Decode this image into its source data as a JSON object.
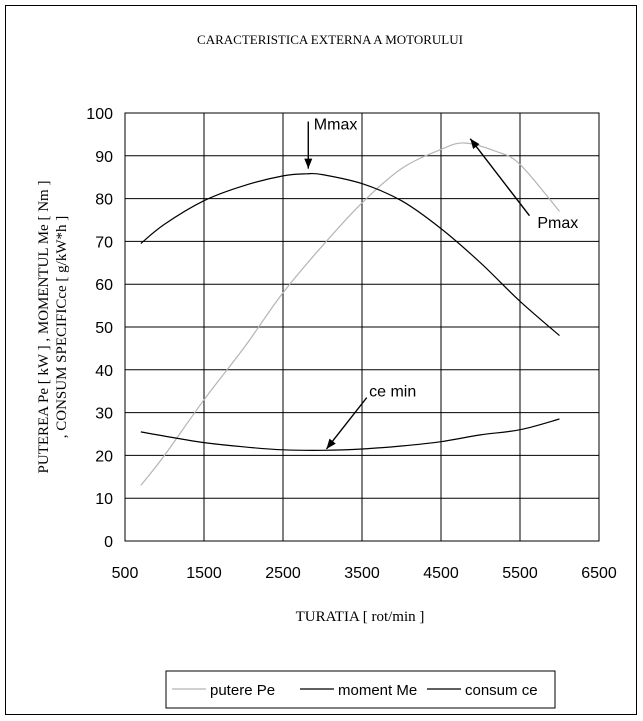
{
  "chart_data": {
    "type": "line",
    "title": "CARACTERISTICA EXTERNA A MOTORULUI",
    "xlabel": "TURATIA [ rot/min ]",
    "ylabel_lines": [
      "PUTEREA Pe [ kW ] , MOMENTUL Me [ Nm ]",
      ", CONSUM SPECIFICce [ g/kW*h ]"
    ],
    "xlim": [
      500,
      6500
    ],
    "ylim": [
      0,
      100
    ],
    "x_ticks": [
      "500",
      "1500",
      "2500",
      "3500",
      "4500",
      "5500",
      "6500"
    ],
    "y_ticks": [
      "0",
      "10",
      "20",
      "30",
      "40",
      "50",
      "60",
      "70",
      "80",
      "90",
      "100"
    ],
    "grid": true,
    "legend_position": "bottom",
    "series": [
      {
        "name": "putere Pe",
        "color": "#b4b4b4",
        "points": [
          [
            700,
            13
          ],
          [
            1000,
            20
          ],
          [
            1500,
            33
          ],
          [
            2000,
            45
          ],
          [
            2500,
            58
          ],
          [
            3000,
            69
          ],
          [
            3500,
            79
          ],
          [
            4000,
            87
          ],
          [
            4500,
            91.5
          ],
          [
            4800,
            93
          ],
          [
            5200,
            91
          ],
          [
            5500,
            88
          ],
          [
            6000,
            77
          ]
        ]
      },
      {
        "name": "moment Me",
        "color": "#000000",
        "points": [
          [
            700,
            69.5
          ],
          [
            1000,
            74
          ],
          [
            1500,
            79.5
          ],
          [
            2000,
            83
          ],
          [
            2500,
            85.3
          ],
          [
            2800,
            85.8
          ],
          [
            3000,
            85.6
          ],
          [
            3500,
            83.5
          ],
          [
            4000,
            79.5
          ],
          [
            4500,
            73
          ],
          [
            5000,
            65
          ],
          [
            5500,
            56
          ],
          [
            6000,
            48
          ]
        ]
      },
      {
        "name": "consum ce",
        "color": "#000000",
        "points": [
          [
            700,
            25.5
          ],
          [
            1000,
            24.5
          ],
          [
            1500,
            23
          ],
          [
            2000,
            22
          ],
          [
            2500,
            21.3
          ],
          [
            3000,
            21.2
          ],
          [
            3500,
            21.5
          ],
          [
            4000,
            22.2
          ],
          [
            4500,
            23.2
          ],
          [
            5000,
            24.8
          ],
          [
            5500,
            26
          ],
          [
            6000,
            28.5
          ]
        ]
      }
    ],
    "annotations": [
      {
        "text": "Mmax",
        "label_at": [
          2890,
          97.5
        ],
        "arrow_from": [
          2820,
          98
        ],
        "arrow_to": [
          2820,
          87
        ]
      },
      {
        "text": "Pmax",
        "label_at": [
          5720,
          74.5
        ],
        "arrow_from": [
          5620,
          76
        ],
        "arrow_to": [
          4870,
          94
        ]
      },
      {
        "text": "ce min",
        "label_at": [
          3590,
          35.2
        ],
        "arrow_from": [
          3560,
          33.5
        ],
        "arrow_to": [
          3050,
          21.5
        ]
      }
    ]
  }
}
